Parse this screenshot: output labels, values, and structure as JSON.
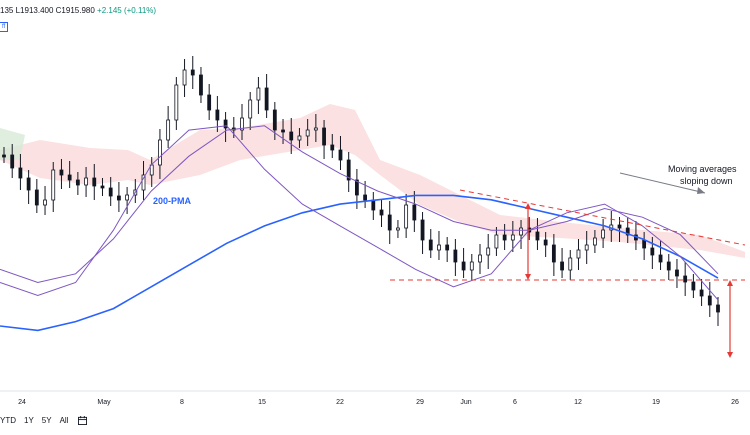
{
  "header": {
    "ohlc_prefix": "135",
    "low_label": "L1913.400",
    "close_label": "C1915.980",
    "change_label": "+2.145 (+0.11%)",
    "badge": "ff"
  },
  "range_buttons": [
    "YTD",
    "1Y",
    "5Y",
    "All"
  ],
  "colors": {
    "up": "#131722",
    "ma_blue": "#2962ff",
    "ma_purple": "#7e57c2",
    "cloud_red": "#f7c9c9",
    "cloud_green": "#d7ead7",
    "annotation_red": "#e53935",
    "arrow_gray": "#787b86"
  },
  "chart_data": {
    "type": "line",
    "x_ticks": [
      "24",
      "May",
      "8",
      "15",
      "22",
      "29",
      "Jun",
      "6",
      "12",
      "19",
      "26"
    ],
    "annotations": {
      "ma_label": "200-PMA",
      "note_line1": "Moving averages",
      "note_line2": "sloping down"
    },
    "series": [
      {
        "values": [
          1922,
          1921,
          1923,
          1926,
          1931,
          1936,
          1941,
          1945,
          1948,
          1950,
          1951,
          1952,
          1952,
          1951,
          1949,
          1947,
          1945,
          1942,
          1938,
          1933
        ]
      },
      {
        "values": [
          1935,
          1932,
          1934,
          1942,
          1953,
          1961,
          1967,
          1968,
          1962,
          1957,
          1953,
          1950,
          1946,
          1944,
          1944,
          1946,
          1949,
          1947,
          1943,
          1934
        ]
      },
      {
        "values": [
          1932,
          1929,
          1932,
          1944,
          1959,
          1967,
          1968,
          1958,
          1950,
          1945,
          1940,
          1935,
          1931,
          1934,
          1944,
          1948,
          1950,
          1945,
          1938,
          1928
        ]
      }
    ]
  }
}
